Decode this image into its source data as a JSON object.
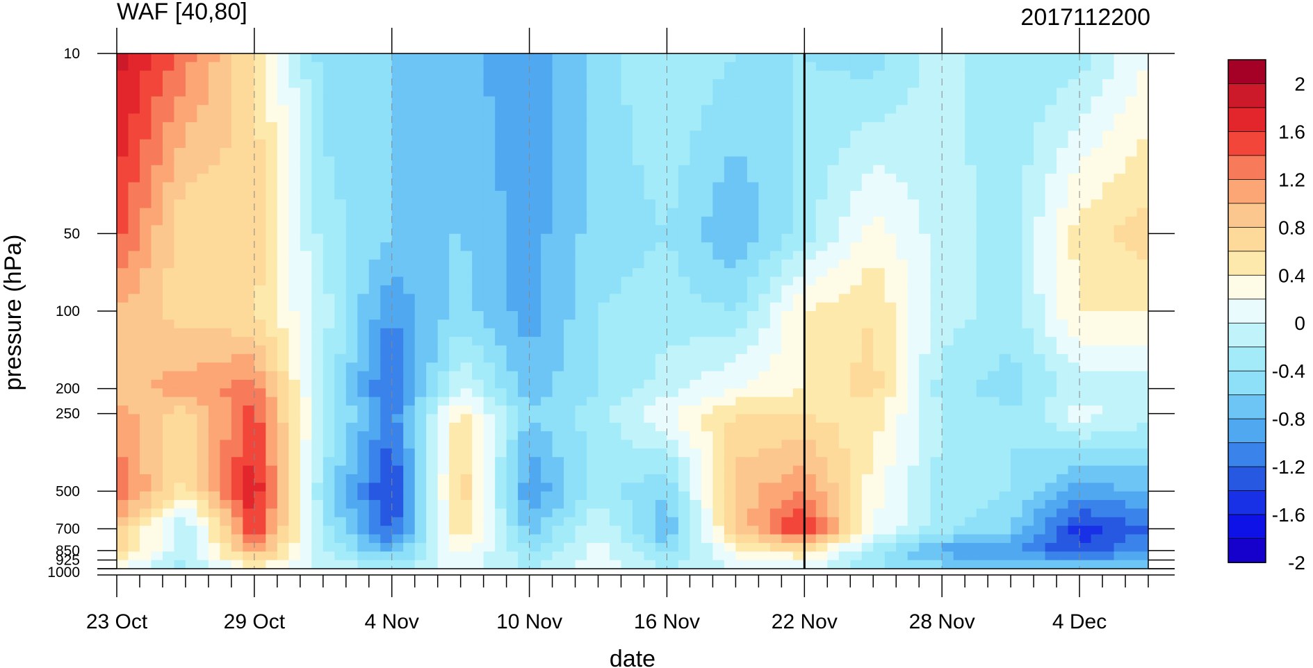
{
  "chart_data": {
    "type": "heatmap",
    "title": "WAF [40,80]",
    "title_right": "2017112200",
    "xlabel": "date",
    "ylabel": "pressure (hPa)",
    "x_tick_labels": [
      "23 Oct",
      "29 Oct",
      "4 Nov",
      "10 Nov",
      "16 Nov",
      "22 Nov",
      "28 Nov",
      "4 Dec"
    ],
    "x_tick_days": [
      0,
      6,
      12,
      18,
      24,
      30,
      36,
      42
    ],
    "x_range_days": [
      0,
      45
    ],
    "x_start_date": "23 Oct",
    "x_end_date": "7 Dec",
    "y_scale": "log",
    "y_ticks": [
      10,
      50,
      100,
      200,
      250,
      500,
      700,
      850,
      925,
      1000
    ],
    "y_tick_labels": [
      "10",
      "50",
      "100",
      "200",
      "250",
      "500",
      "700",
      "850",
      "925",
      "1000"
    ],
    "ylim": [
      1000,
      10
    ],
    "vertical_marker_day": 30,
    "colorbar": {
      "labels": [
        "2",
        "1.6",
        "1.2",
        "0.8",
        "0.4",
        "0",
        "-0.4",
        "-0.8",
        "-1.2",
        "-1.6",
        "-2"
      ],
      "levels": [
        2.2,
        2.0,
        1.8,
        1.6,
        1.4,
        1.2,
        1.0,
        0.8,
        0.6,
        0.4,
        0.2,
        0.0,
        -0.2,
        -0.4,
        -0.6,
        -0.8,
        -1.0,
        -1.2,
        -1.4,
        -1.6,
        -1.8,
        -2.0,
        -2.2
      ],
      "colors": [
        "#a50026",
        "#cc1a2b",
        "#e3262c",
        "#f2463b",
        "#f77b5a",
        "#fba674",
        "#fcc78e",
        "#fdd99a",
        "#fee9ad",
        "#fefbe6",
        "#e9fbfd",
        "#c1f3fa",
        "#a4ebf9",
        "#8edff8",
        "#6dc5f6",
        "#50a8f1",
        "#3a83ea",
        "#2758e2",
        "#1830e6",
        "#0f12e6",
        "#1500cc"
      ]
    },
    "levels_hpa": [
      10,
      50,
      100,
      200,
      250,
      500,
      700,
      850,
      925,
      1000
    ],
    "days": [
      0,
      3,
      6,
      9,
      12,
      15,
      18,
      21,
      24,
      27,
      30,
      33,
      36,
      39,
      42,
      45
    ],
    "values": [
      [
        1.9,
        1.3,
        0.6,
        -0.5,
        -0.6,
        -0.7,
        -1.0,
        -0.5,
        -0.2,
        -0.4,
        -0.4,
        -0.5,
        -0.1,
        -0.4,
        -0.3,
        0.2
      ],
      [
        1.5,
        0.6,
        0.8,
        -0.3,
        -0.6,
        -0.6,
        -0.9,
        -0.5,
        -0.4,
        -0.8,
        -0.3,
        0.3,
        -0.1,
        -0.3,
        0.5,
        0.7
      ],
      [
        1.0,
        0.7,
        0.6,
        -0.1,
        -1.0,
        -0.5,
        -0.9,
        -0.4,
        -0.3,
        -0.4,
        0.4,
        0.6,
        -0.1,
        -0.3,
        0.4,
        0.4
      ],
      [
        0.9,
        1.1,
        1.3,
        -0.2,
        -1.3,
        0.0,
        -0.7,
        -0.4,
        -0.1,
        0.2,
        0.4,
        0.7,
        -0.3,
        -0.5,
        -0.1,
        -0.1
      ],
      [
        1.1,
        0.7,
        1.5,
        -0.2,
        -1.1,
        0.5,
        -0.6,
        -0.3,
        0.2,
        0.6,
        0.6,
        0.5,
        -0.2,
        -0.4,
        0.1,
        -0.1
      ],
      [
        1.4,
        0.5,
        1.8,
        -0.4,
        -1.5,
        0.8,
        -1.0,
        -0.3,
        -0.6,
        0.9,
        1.2,
        0.3,
        -0.3,
        -0.4,
        -0.9,
        -0.8
      ],
      [
        0.9,
        -0.3,
        1.6,
        -0.3,
        -1.3,
        0.6,
        -0.7,
        0.0,
        -0.8,
        0.8,
        1.7,
        0.2,
        -0.3,
        -0.6,
        -1.5,
        -1.2
      ],
      [
        0.8,
        -0.2,
        1.1,
        -0.2,
        -0.8,
        0.3,
        -0.4,
        0.1,
        -0.5,
        0.3,
        0.6,
        -0.3,
        -0.9,
        -1.0,
        -1.4,
        -1.0
      ],
      [
        0.4,
        -0.3,
        0.7,
        -0.1,
        -0.5,
        0.2,
        -0.3,
        0.1,
        -0.3,
        0.1,
        0.3,
        -0.4,
        -0.7,
        -0.8,
        -0.9,
        -0.8
      ],
      [
        0.2,
        -0.2,
        0.3,
        0.0,
        -0.3,
        0.1,
        -0.2,
        0.1,
        -0.2,
        0.0,
        0.1,
        -0.3,
        -0.5,
        -0.6,
        -0.6,
        -0.6
      ]
    ]
  }
}
